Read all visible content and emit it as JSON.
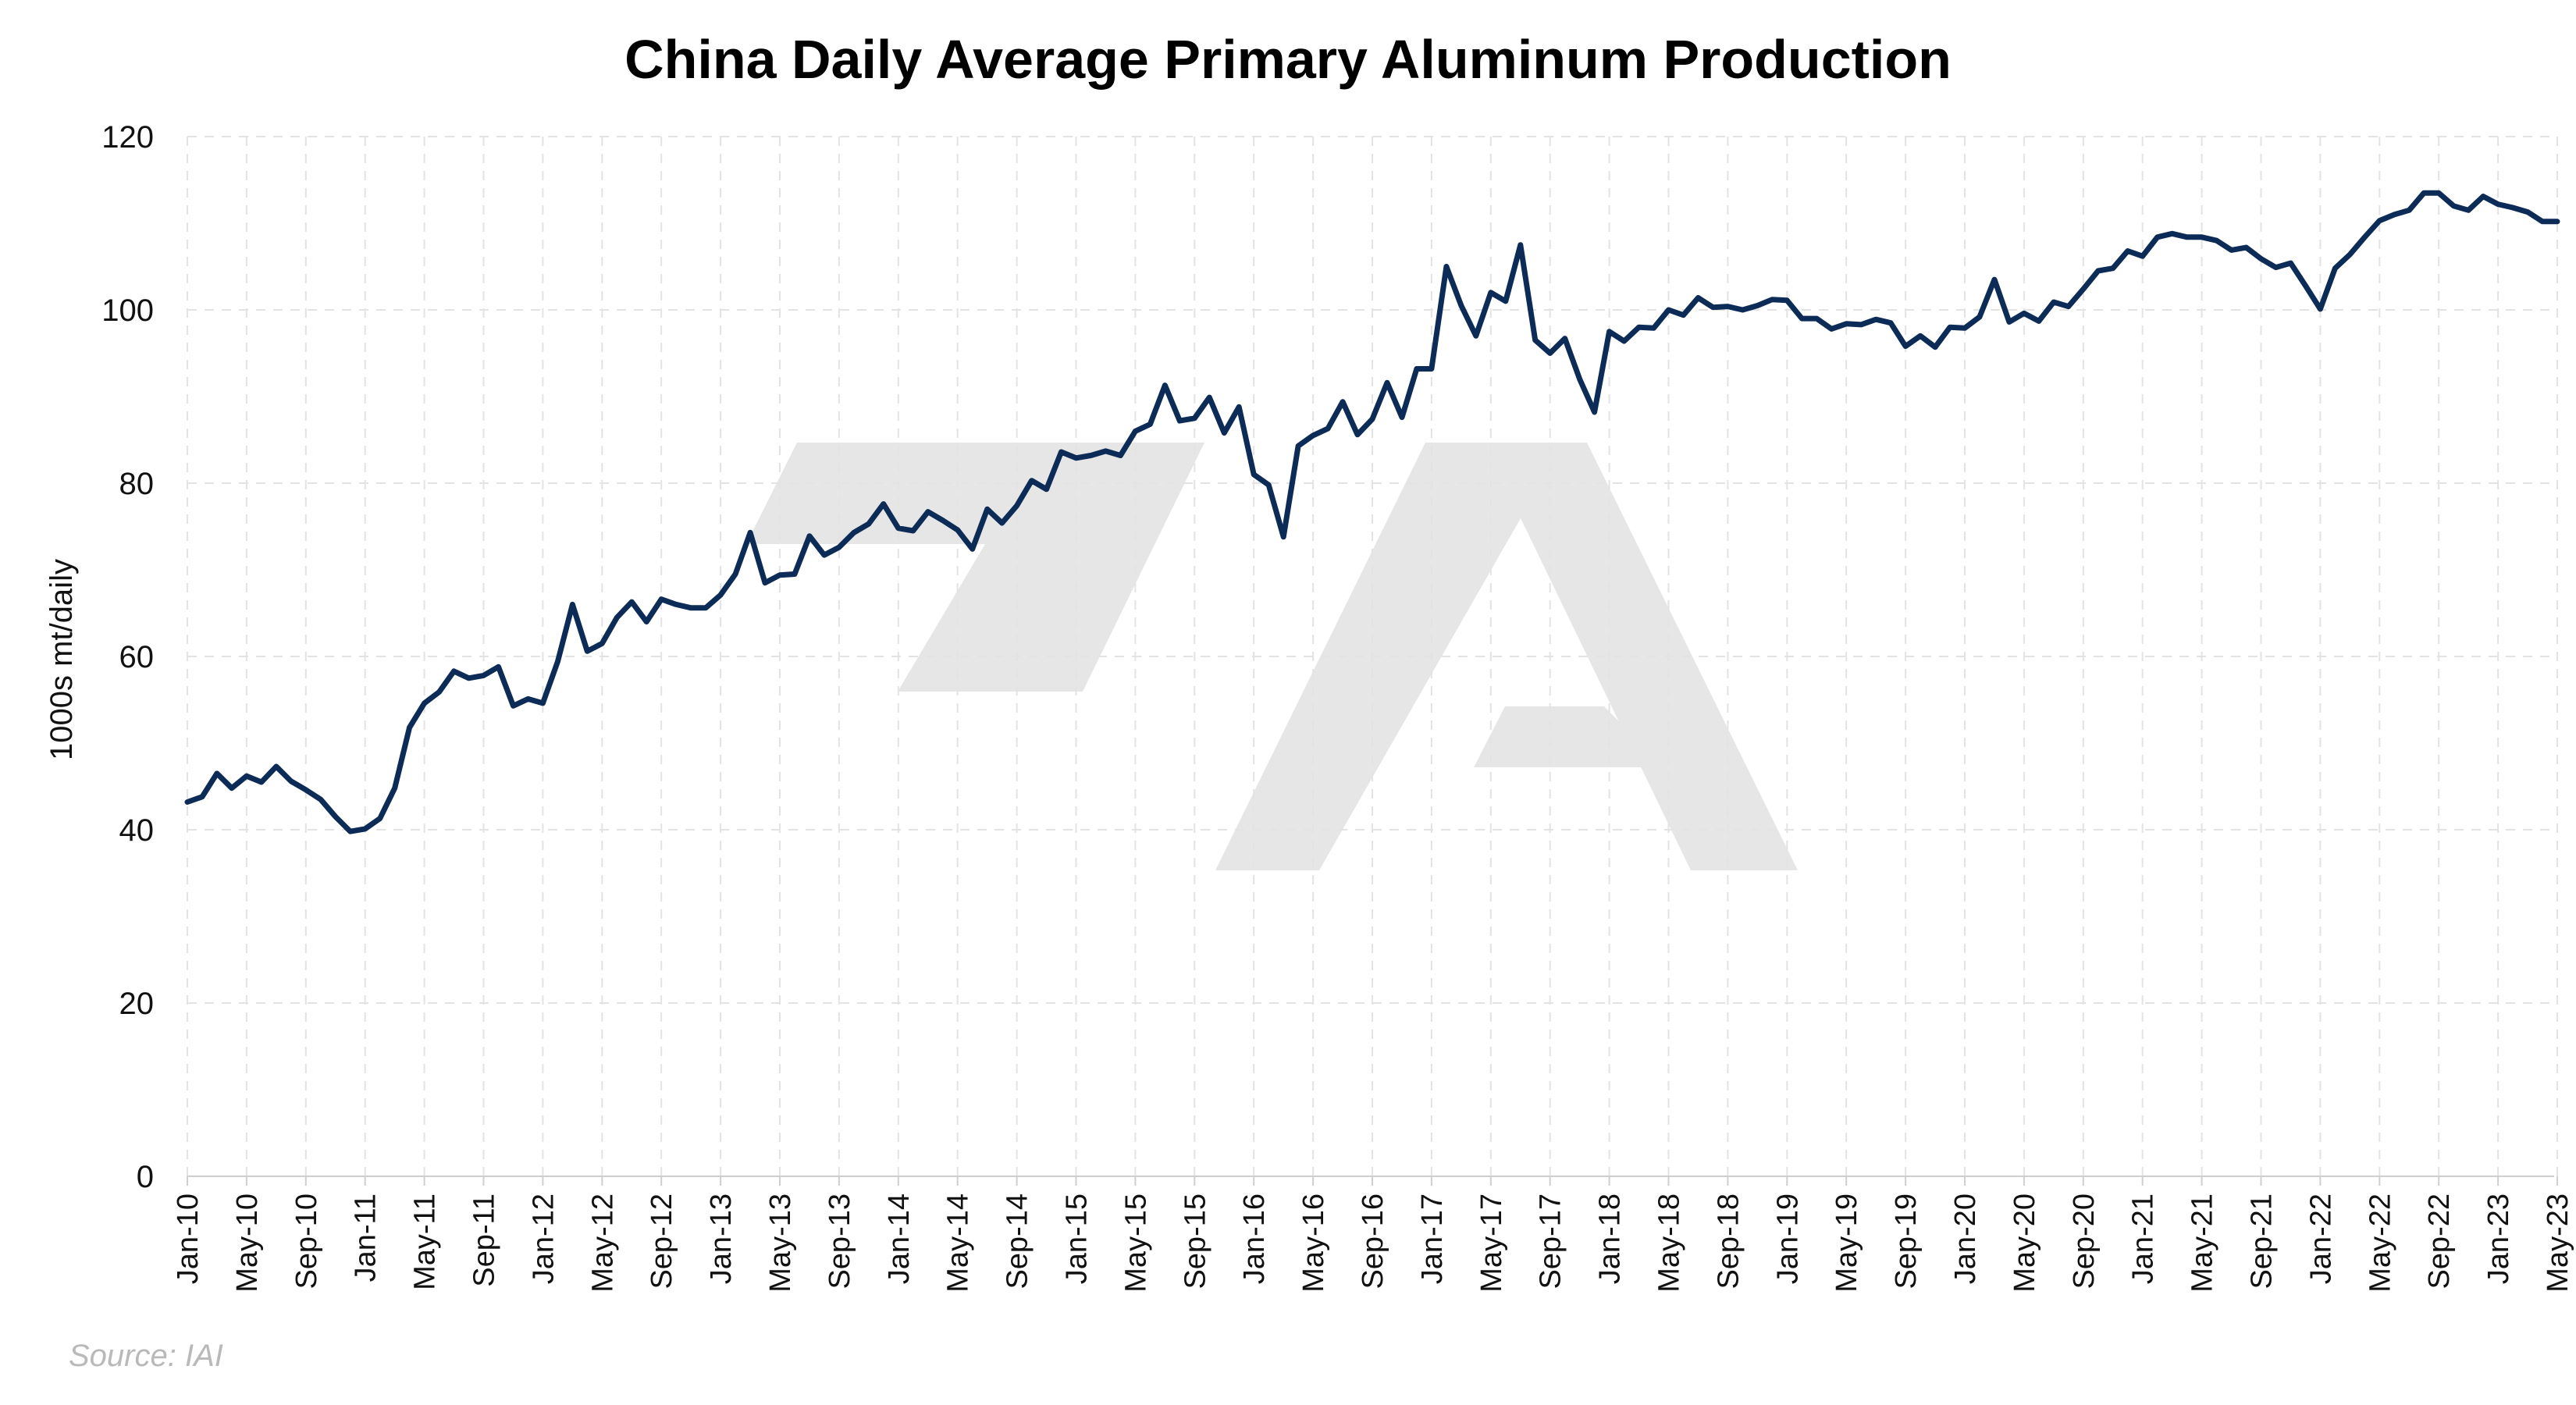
{
  "chart_data": {
    "type": "line",
    "title": "China Daily Average Primary Aluminum Production",
    "ylabel": "1000s mt/daily",
    "xlabel": "",
    "source": "Source: IAI",
    "ylim": [
      0,
      120
    ],
    "yticks": [
      0,
      20,
      40,
      60,
      80,
      100,
      120
    ],
    "grid": true,
    "legend": "none",
    "line_color": "#0c2c57",
    "watermark_color": "#e6e6e6",
    "x_tick_labels": [
      "Jan-10",
      "May-10",
      "Sep-10",
      "Jan-11",
      "May-11",
      "Sep-11",
      "Jan-12",
      "May-12",
      "Sep-12",
      "Jan-13",
      "May-13",
      "Sep-13",
      "Jan-14",
      "May-14",
      "Sep-14",
      "Jan-15",
      "May-15",
      "Sep-15",
      "Jan-16",
      "May-16",
      "Sep-16",
      "Jan-17",
      "May-17",
      "Sep-17",
      "Jan-18",
      "May-18",
      "Sep-18",
      "Jan-19",
      "May-19",
      "Sep-19",
      "Jan-20",
      "May-20",
      "Sep-20",
      "Jan-21",
      "May-21",
      "Sep-21",
      "Jan-22",
      "May-22",
      "Sep-22",
      "Jan-23",
      "May-23"
    ],
    "x_start": "2010-01",
    "series": [
      {
        "values": [
          43.2,
          43.8,
          46.5,
          44.8,
          46.2,
          45.5,
          47.3,
          45.6,
          44.6,
          43.5,
          41.5,
          39.8,
          40.1,
          41.3,
          44.8,
          51.8,
          54.6,
          55.9,
          58.3,
          57.5,
          57.8,
          58.8,
          54.3,
          55.1,
          54.6,
          59.4,
          66.0,
          60.6,
          61.5,
          64.5,
          66.3,
          64.0,
          66.6,
          66.0,
          65.6,
          65.6,
          67.1,
          69.5,
          74.3,
          68.5,
          69.4,
          69.5,
          73.9,
          71.7,
          72.6,
          74.3,
          75.3,
          77.6,
          74.8,
          74.5,
          76.7,
          75.7,
          74.6,
          72.4,
          77.0,
          75.4,
          77.4,
          80.3,
          79.3,
          83.6,
          82.9,
          83.2,
          83.7,
          83.2,
          86.0,
          86.8,
          91.3,
          87.2,
          87.5,
          89.9,
          85.8,
          88.8,
          81.0,
          79.8,
          73.8,
          84.3,
          85.5,
          86.3,
          89.4,
          85.6,
          87.4,
          91.6,
          87.6,
          93.2,
          93.2,
          105.0,
          100.5,
          97.0,
          102.0,
          101.0,
          107.5,
          96.5,
          95.0,
          96.7,
          92.0,
          88.2,
          97.5,
          96.4,
          98.0,
          97.9,
          100.0,
          99.4,
          101.4,
          100.3,
          100.4,
          100.0,
          100.5,
          101.2,
          101.1,
          99.0,
          99.0,
          97.8,
          98.4,
          98.3,
          98.9,
          98.5,
          95.8,
          97.0,
          95.7,
          98.0,
          97.9,
          99.2,
          103.5,
          98.6,
          99.6,
          98.7,
          100.9,
          100.4,
          102.4,
          104.5,
          104.8,
          106.8,
          106.2,
          108.4,
          108.8,
          108.4,
          108.4,
          108.0,
          106.9,
          107.2,
          105.9,
          104.9,
          105.4,
          102.8,
          100.1,
          104.8,
          106.4,
          108.4,
          110.3,
          111.0,
          111.5,
          113.5,
          113.5,
          112.0,
          111.5,
          113.1,
          112.2,
          111.8,
          111.3,
          110.2,
          110.2
        ]
      }
    ]
  }
}
